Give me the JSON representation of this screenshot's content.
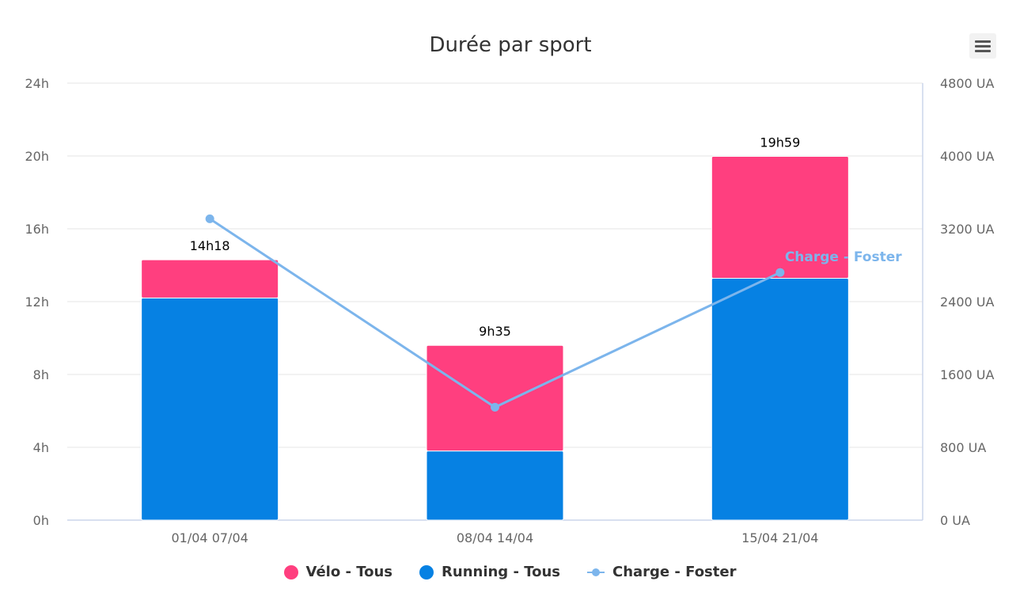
{
  "chart_data": {
    "type": "bar",
    "title": "Durée par sport",
    "categories": [
      "01/04 07/04",
      "08/04 14/04",
      "15/04 21/04"
    ],
    "y_left": {
      "ticks": [
        "0h",
        "4h",
        "8h",
        "12h",
        "16h",
        "20h",
        "24h"
      ],
      "range": [
        0,
        24
      ]
    },
    "y_right": {
      "ticks": [
        "0 UA",
        "800 UA",
        "1600 UA",
        "2400 UA",
        "3200 UA",
        "4000 UA",
        "4800 UA"
      ],
      "range": [
        0,
        4800
      ]
    },
    "stacked": true,
    "series": [
      {
        "name": "Vélo - Tous",
        "type": "bar",
        "axis": "left",
        "color": "#ff3f7f",
        "values": [
          2.1,
          5.8,
          6.7
        ]
      },
      {
        "name": "Running - Tous",
        "type": "bar",
        "axis": "left",
        "color": "#0681e3",
        "values": [
          12.2,
          3.8,
          13.28
        ]
      },
      {
        "name": "Charge - Foster",
        "type": "line",
        "axis": "right",
        "color": "#7cb5ec",
        "values": [
          3310,
          1240,
          2720
        ]
      }
    ],
    "total_labels": [
      "14h18",
      "9h35",
      "19h59"
    ],
    "line_label": "Charge - Foster",
    "grid": true,
    "legend_position": "bottom-center"
  }
}
